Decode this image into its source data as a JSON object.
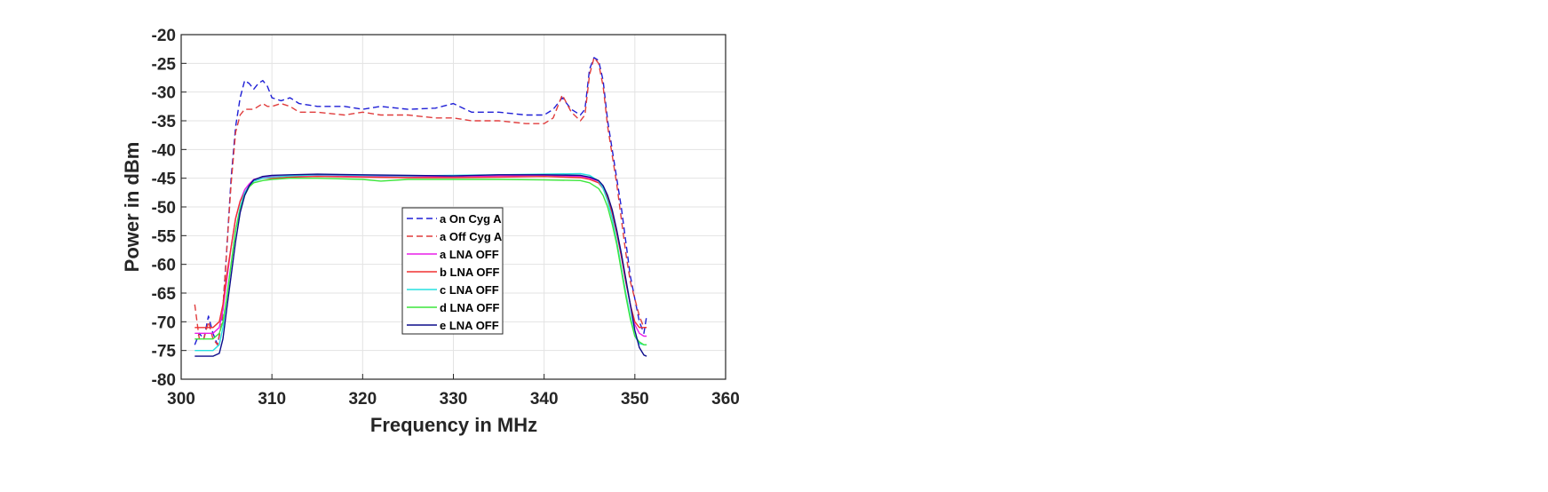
{
  "chart_data": {
    "type": "line",
    "title": "",
    "xlabel": "Frequency in MHz",
    "ylabel": "Power in dBm",
    "xlim": [
      300,
      360
    ],
    "ylim": [
      -80,
      -20
    ],
    "xticks": [
      "300",
      "310",
      "320",
      "330",
      "340",
      "350",
      "360"
    ],
    "yticks": [
      "-20",
      "-25",
      "-30",
      "-35",
      "-40",
      "-45",
      "-50",
      "-55",
      "-60",
      "-65",
      "-70",
      "-75",
      "-80"
    ],
    "grid": true,
    "legend_position": "center",
    "series": [
      {
        "name": "a On Cyg A",
        "color": "#1f1fd6",
        "dash": true,
        "x": [
          301.5,
          302.0,
          302.5,
          303.0,
          303.5,
          304.0,
          304.5,
          305.0,
          305.5,
          306.0,
          306.5,
          307.0,
          307.5,
          308.0,
          308.5,
          309.0,
          309.5,
          310.0,
          311.0,
          312.0,
          313.0,
          315.0,
          318.0,
          320.0,
          322.0,
          325.0,
          328.0,
          330.0,
          332.0,
          335.0,
          338.0,
          340.0,
          341.0,
          342.0,
          343.0,
          344.0,
          344.5,
          345.0,
          345.5,
          346.0,
          346.5,
          347.0,
          347.5,
          348.0,
          348.5,
          349.0,
          349.5,
          350.0,
          350.5,
          351.0,
          351.3
        ],
        "y": [
          -74,
          -72,
          -73,
          -69,
          -72,
          -74,
          -70,
          -58,
          -45,
          -36,
          -31,
          -28,
          -28.5,
          -29.5,
          -28.5,
          -28,
          -29,
          -31,
          -31.5,
          -31,
          -32,
          -32.5,
          -32.5,
          -33,
          -32.5,
          -33,
          -32.8,
          -32,
          -33.5,
          -33.5,
          -34,
          -34,
          -33,
          -31,
          -33,
          -34,
          -33,
          -26,
          -24,
          -24.5,
          -28,
          -35,
          -40,
          -45,
          -50,
          -56,
          -62,
          -66,
          -70,
          -72,
          -69
        ]
      },
      {
        "name": "a Off Cyg A",
        "color": "#e03c3c",
        "dash": true,
        "x": [
          301.5,
          302.0,
          302.5,
          303.0,
          303.5,
          304.0,
          304.5,
          305.0,
          305.5,
          306.0,
          306.5,
          307.0,
          307.5,
          308.0,
          308.5,
          309.0,
          309.5,
          310.0,
          311.0,
          312.0,
          313.0,
          315.0,
          318.0,
          320.0,
          322.0,
          325.0,
          328.0,
          330.0,
          332.0,
          335.0,
          338.0,
          340.0,
          341.0,
          342.0,
          343.0,
          344.0,
          344.5,
          345.0,
          345.5,
          346.0,
          346.5,
          347.0,
          347.5,
          348.0,
          348.5,
          349.0,
          349.5,
          350.0,
          350.5,
          351.0,
          351.3
        ],
        "y": [
          -67,
          -73,
          -73,
          -70,
          -73,
          -74,
          -70,
          -58,
          -46,
          -37,
          -34,
          -33,
          -33,
          -33,
          -32.5,
          -32,
          -32.5,
          -32.5,
          -32,
          -32.5,
          -33.5,
          -33.5,
          -34,
          -33.5,
          -34,
          -34,
          -34.5,
          -34.5,
          -35,
          -35,
          -35.5,
          -35.5,
          -34.5,
          -30.5,
          -33.5,
          -35,
          -34,
          -27,
          -24,
          -25,
          -29,
          -36,
          -41,
          -46,
          -52,
          -58,
          -63,
          -66,
          -69,
          -71,
          -71
        ]
      },
      {
        "name": "a LNA OFF",
        "color": "#e81ee8",
        "dash": false,
        "x": [
          301.5,
          302.5,
          303.5,
          304.2,
          304.6,
          305.0,
          305.5,
          306.0,
          306.5,
          307.0,
          307.5,
          308.0,
          309.0,
          310.0,
          312.0,
          315.0,
          320.0,
          325.0,
          330.0,
          335.0,
          340.0,
          344.0,
          345.0,
          346.0,
          346.5,
          347.0,
          347.5,
          348.0,
          348.5,
          349.0,
          349.5,
          350.0,
          350.5,
          351.0,
          351.3
        ],
        "y": [
          -72,
          -72,
          -72,
          -71,
          -68,
          -63,
          -57,
          -52,
          -49,
          -47,
          -46,
          -45.2,
          -44.8,
          -44.7,
          -44.6,
          -44.5,
          -44.6,
          -44.7,
          -44.8,
          -44.6,
          -44.5,
          -44.7,
          -45,
          -45.5,
          -46.5,
          -48.5,
          -51,
          -54.5,
          -58.5,
          -63,
          -67,
          -70.5,
          -72,
          -72.5,
          -72.5
        ]
      },
      {
        "name": "b LNA OFF",
        "color": "#f03030",
        "dash": false,
        "x": [
          301.5,
          302.5,
          303.5,
          304.2,
          304.6,
          305.0,
          305.5,
          306.0,
          306.5,
          307.0,
          307.5,
          308.0,
          309.0,
          310.0,
          312.0,
          315.0,
          320.0,
          325.0,
          330.0,
          335.0,
          340.0,
          344.0,
          345.0,
          346.0,
          346.5,
          347.0,
          347.5,
          348.0,
          348.5,
          349.0,
          349.5,
          350.0,
          350.5,
          351.0,
          351.3
        ],
        "y": [
          -71,
          -71,
          -71,
          -70,
          -67,
          -62,
          -57,
          -52,
          -49,
          -47.5,
          -46.5,
          -45.5,
          -45,
          -45,
          -44.8,
          -44.7,
          -44.8,
          -44.9,
          -44.9,
          -44.8,
          -44.7,
          -44.9,
          -45.2,
          -45.8,
          -46.8,
          -48.5,
          -51,
          -54.5,
          -58.5,
          -63,
          -67,
          -70,
          -71,
          -71,
          -71
        ]
      },
      {
        "name": "c LNA OFF",
        "color": "#27e0e0",
        "dash": false,
        "x": [
          301.5,
          302.5,
          303.5,
          304.2,
          304.6,
          305.0,
          305.5,
          306.0,
          306.5,
          307.0,
          307.5,
          308.0,
          309.0,
          310.0,
          312.0,
          315.0,
          320.0,
          325.0,
          330.0,
          335.0,
          340.0,
          344.0,
          345.0,
          346.0,
          346.5,
          347.0,
          347.5,
          348.0,
          348.5,
          349.0,
          349.5,
          350.0,
          350.5,
          351.0,
          351.3
        ],
        "y": [
          -75,
          -75,
          -75,
          -74,
          -71,
          -66,
          -60,
          -54,
          -50,
          -47.5,
          -46.3,
          -45.5,
          -45,
          -44.8,
          -44.6,
          -44.4,
          -44.5,
          -44.6,
          -44.5,
          -44.4,
          -44.3,
          -44.2,
          -44.5,
          -45.5,
          -46.8,
          -49,
          -52,
          -56,
          -60.5,
          -65,
          -69,
          -72.5,
          -73.8,
          -74,
          -74
        ]
      },
      {
        "name": "d LNA OFF",
        "color": "#3ce63c",
        "dash": false,
        "x": [
          301.5,
          302.5,
          303.5,
          304.2,
          304.6,
          305.0,
          305.5,
          306.0,
          306.5,
          307.0,
          307.5,
          308.0,
          309.0,
          310.0,
          312.0,
          315.0,
          320.0,
          322.0,
          325.0,
          330.0,
          335.0,
          340.0,
          344.0,
          345.0,
          346.0,
          346.5,
          347.0,
          347.5,
          348.0,
          348.5,
          349.0,
          349.5,
          350.0,
          350.5,
          351.0,
          351.3
        ],
        "y": [
          -73,
          -73,
          -73,
          -72,
          -70,
          -66,
          -60,
          -54,
          -50.5,
          -48,
          -46.5,
          -45.8,
          -45.4,
          -45.2,
          -45,
          -45,
          -45.2,
          -45.5,
          -45.2,
          -45.2,
          -45.2,
          -45.3,
          -45.4,
          -45.8,
          -46.8,
          -48,
          -50,
          -53,
          -56.5,
          -61,
          -65.5,
          -69.5,
          -72.5,
          -73.5,
          -74,
          -74
        ]
      },
      {
        "name": "e LNA OFF",
        "color": "#0c0c8a",
        "dash": false,
        "x": [
          301.5,
          302.5,
          303.5,
          304.2,
          304.6,
          305.0,
          305.5,
          306.0,
          306.5,
          307.0,
          307.5,
          308.0,
          309.0,
          310.0,
          312.0,
          315.0,
          320.0,
          325.0,
          330.0,
          335.0,
          340.0,
          344.0,
          345.0,
          346.0,
          346.5,
          347.0,
          347.5,
          348.0,
          348.5,
          349.0,
          349.5,
          350.0,
          350.5,
          351.0,
          351.3
        ],
        "y": [
          -76,
          -76,
          -76,
          -75.5,
          -73,
          -68,
          -62,
          -56,
          -51,
          -48,
          -46.3,
          -45.3,
          -44.7,
          -44.5,
          -44.4,
          -44.3,
          -44.4,
          -44.5,
          -44.6,
          -44.4,
          -44.4,
          -44.5,
          -44.8,
          -45.4,
          -46.3,
          -48,
          -50.5,
          -54,
          -58,
          -62.5,
          -67,
          -71.5,
          -74.5,
          -75.8,
          -76
        ]
      }
    ]
  }
}
